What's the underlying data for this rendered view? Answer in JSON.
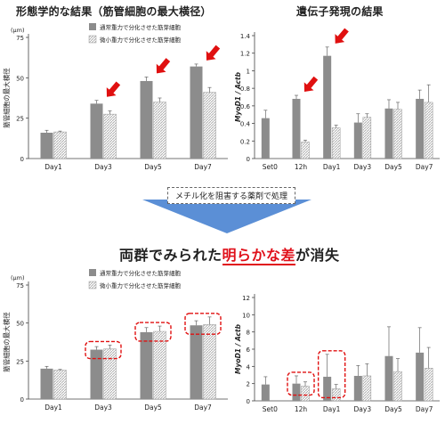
{
  "header": {
    "left_title": "形態学的な結果（筋管細胞の最大横径）",
    "right_title": "遺伝子発現の結果"
  },
  "middle": {
    "treatment_label": "メチル化を阻害する薬剤で処理",
    "headline_before": "両群でみられた",
    "headline_highlight": "明らかな差",
    "headline_after": "が消失"
  },
  "colors": {
    "normal_bar": "#8c8c8c",
    "micro_bar_hatch": "#b0b0b0",
    "arrow": "#e01010",
    "dashed_box": "#e01010",
    "blue_arrow": "#5b8fd6"
  },
  "chart_data": [
    {
      "id": "morph-top",
      "type": "bar",
      "unit_label": "(μm)",
      "ylabel": "筋管細胞の最大横径",
      "ylim": [
        0,
        75
      ],
      "yticks": [
        0,
        25,
        50,
        75
      ],
      "categories": [
        "Day1",
        "Day3",
        "Day5",
        "Day7"
      ],
      "series": [
        {
          "name": "通常重力で分化させた筋芽細胞",
          "style": "solid",
          "values": [
            16,
            34,
            48,
            57
          ],
          "errors": [
            1.5,
            2,
            2.5,
            1.5
          ]
        },
        {
          "name": "微小重力で分化させた筋芽細胞",
          "style": "hatch",
          "values": [
            16.5,
            27.5,
            35,
            41
          ],
          "errors": [
            0.5,
            2,
            2.5,
            3
          ]
        }
      ],
      "legend_position": "top-right",
      "annotations": {
        "red_arrows_at": [
          "Day3",
          "Day5",
          "Day7"
        ]
      }
    },
    {
      "id": "gene-top",
      "type": "bar",
      "ylabel": "MyoD1 / Actb",
      "ylim": [
        0,
        1.4
      ],
      "yticks": [
        0,
        0.2,
        0.4,
        0.6,
        0.8,
        1,
        1.2,
        1.4
      ],
      "categories": [
        "Set0",
        "12h",
        "Day1",
        "Day3",
        "Day5",
        "Day7"
      ],
      "series": [
        {
          "name": "通常重力",
          "style": "solid",
          "values": [
            0.46,
            0.68,
            1.17,
            0.41,
            0.57,
            0.68
          ],
          "errors": [
            0.09,
            0.04,
            0.1,
            0.1,
            0.1,
            0.1
          ]
        },
        {
          "name": "微小重力",
          "style": "hatch",
          "values": [
            null,
            0.19,
            0.35,
            0.47,
            0.56,
            0.64
          ],
          "errors": [
            null,
            0.02,
            0.03,
            0.04,
            0.08,
            0.2
          ]
        }
      ],
      "annotations": {
        "red_arrows_at": [
          "12h",
          "Day1"
        ]
      }
    },
    {
      "id": "morph-bottom",
      "type": "bar",
      "unit_label": "(μm)",
      "ylabel": "筋管細胞の最大横径",
      "ylim": [
        0,
        75
      ],
      "yticks": [
        0,
        25,
        50,
        75
      ],
      "categories": [
        "Day1",
        "Day3",
        "Day5",
        "Day7"
      ],
      "series": [
        {
          "name": "通常重力で分化させた筋芽細胞",
          "style": "solid",
          "values": [
            20,
            32.5,
            44,
            48.5
          ],
          "errors": [
            1.5,
            2,
            3,
            3
          ]
        },
        {
          "name": "微小重力で分化させた筋芽細胞",
          "style": "hatch",
          "values": [
            19,
            33,
            44.5,
            49
          ],
          "errors": [
            0.5,
            2.5,
            3.5,
            5
          ]
        }
      ],
      "legend_position": "top-right",
      "annotations": {
        "dashed_boxes_at": [
          "Day3",
          "Day5",
          "Day7"
        ]
      }
    },
    {
      "id": "gene-bottom",
      "type": "bar",
      "ylabel": "MyoD1 / Actb",
      "ylim": [
        0,
        12
      ],
      "yticks": [
        0,
        2,
        4,
        6,
        8,
        10,
        12
      ],
      "categories": [
        "Set0",
        "12h",
        "Day1",
        "Day3",
        "Day5",
        "Day7"
      ],
      "series": [
        {
          "name": "通常重力",
          "style": "solid",
          "values": [
            1.9,
            2.0,
            2.8,
            2.9,
            5.2,
            5.6
          ],
          "errors": [
            0.9,
            0.9,
            2.6,
            1.2,
            3.4,
            2.9
          ]
        },
        {
          "name": "微小重力",
          "style": "hatch",
          "values": [
            null,
            1.7,
            1.4,
            2.9,
            3.4,
            3.8
          ],
          "errors": [
            null,
            0.5,
            0.5,
            1.4,
            1.5,
            2.4
          ]
        }
      ],
      "annotations": {
        "dashed_boxes_at": [
          "12h",
          "Day1"
        ]
      }
    }
  ]
}
